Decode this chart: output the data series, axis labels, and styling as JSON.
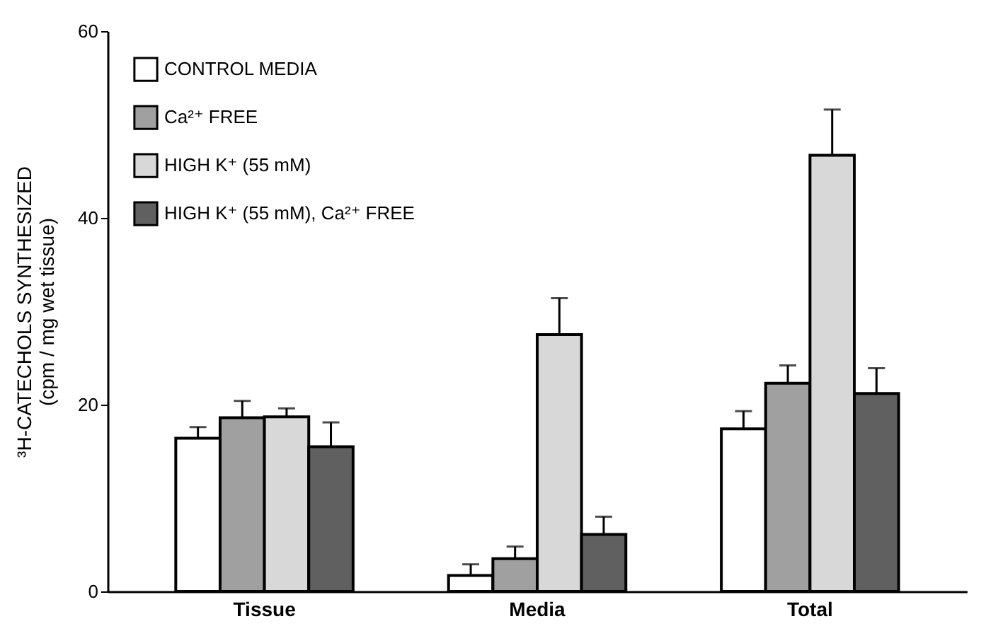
{
  "chart_data": {
    "type": "bar",
    "ylabel": "³H-CATECHOLS SYNTHESIZED\n(cpm / mg wet tissue)",
    "categories": [
      "Tissue",
      "Media",
      "Total"
    ],
    "series": [
      {
        "name": "CONTROL MEDIA",
        "color": "#ffffff",
        "values": [
          16.4,
          1.7,
          17.4
        ],
        "errors": [
          1.2,
          1.2,
          1.9
        ]
      },
      {
        "name": "Ca²⁺ FREE",
        "color": "#a0a0a0",
        "values": [
          18.6,
          3.5,
          22.3
        ],
        "errors": [
          1.8,
          1.3,
          1.9
        ]
      },
      {
        "name": "HIGH K⁺ (55 mM)",
        "color": "#d8d8d8",
        "values": [
          18.7,
          27.5,
          46.7
        ],
        "errors": [
          0.9,
          3.9,
          4.9
        ]
      },
      {
        "name": "HIGH K⁺ (55 mM), Ca²⁺ FREE",
        "color": "#606060",
        "values": [
          15.5,
          6.1,
          21.2
        ],
        "errors": [
          2.6,
          1.9,
          2.7
        ]
      }
    ],
    "ylim": [
      0,
      60
    ],
    "yticks": [
      0,
      20,
      40,
      60
    ],
    "grid": false,
    "legend": "top left"
  }
}
